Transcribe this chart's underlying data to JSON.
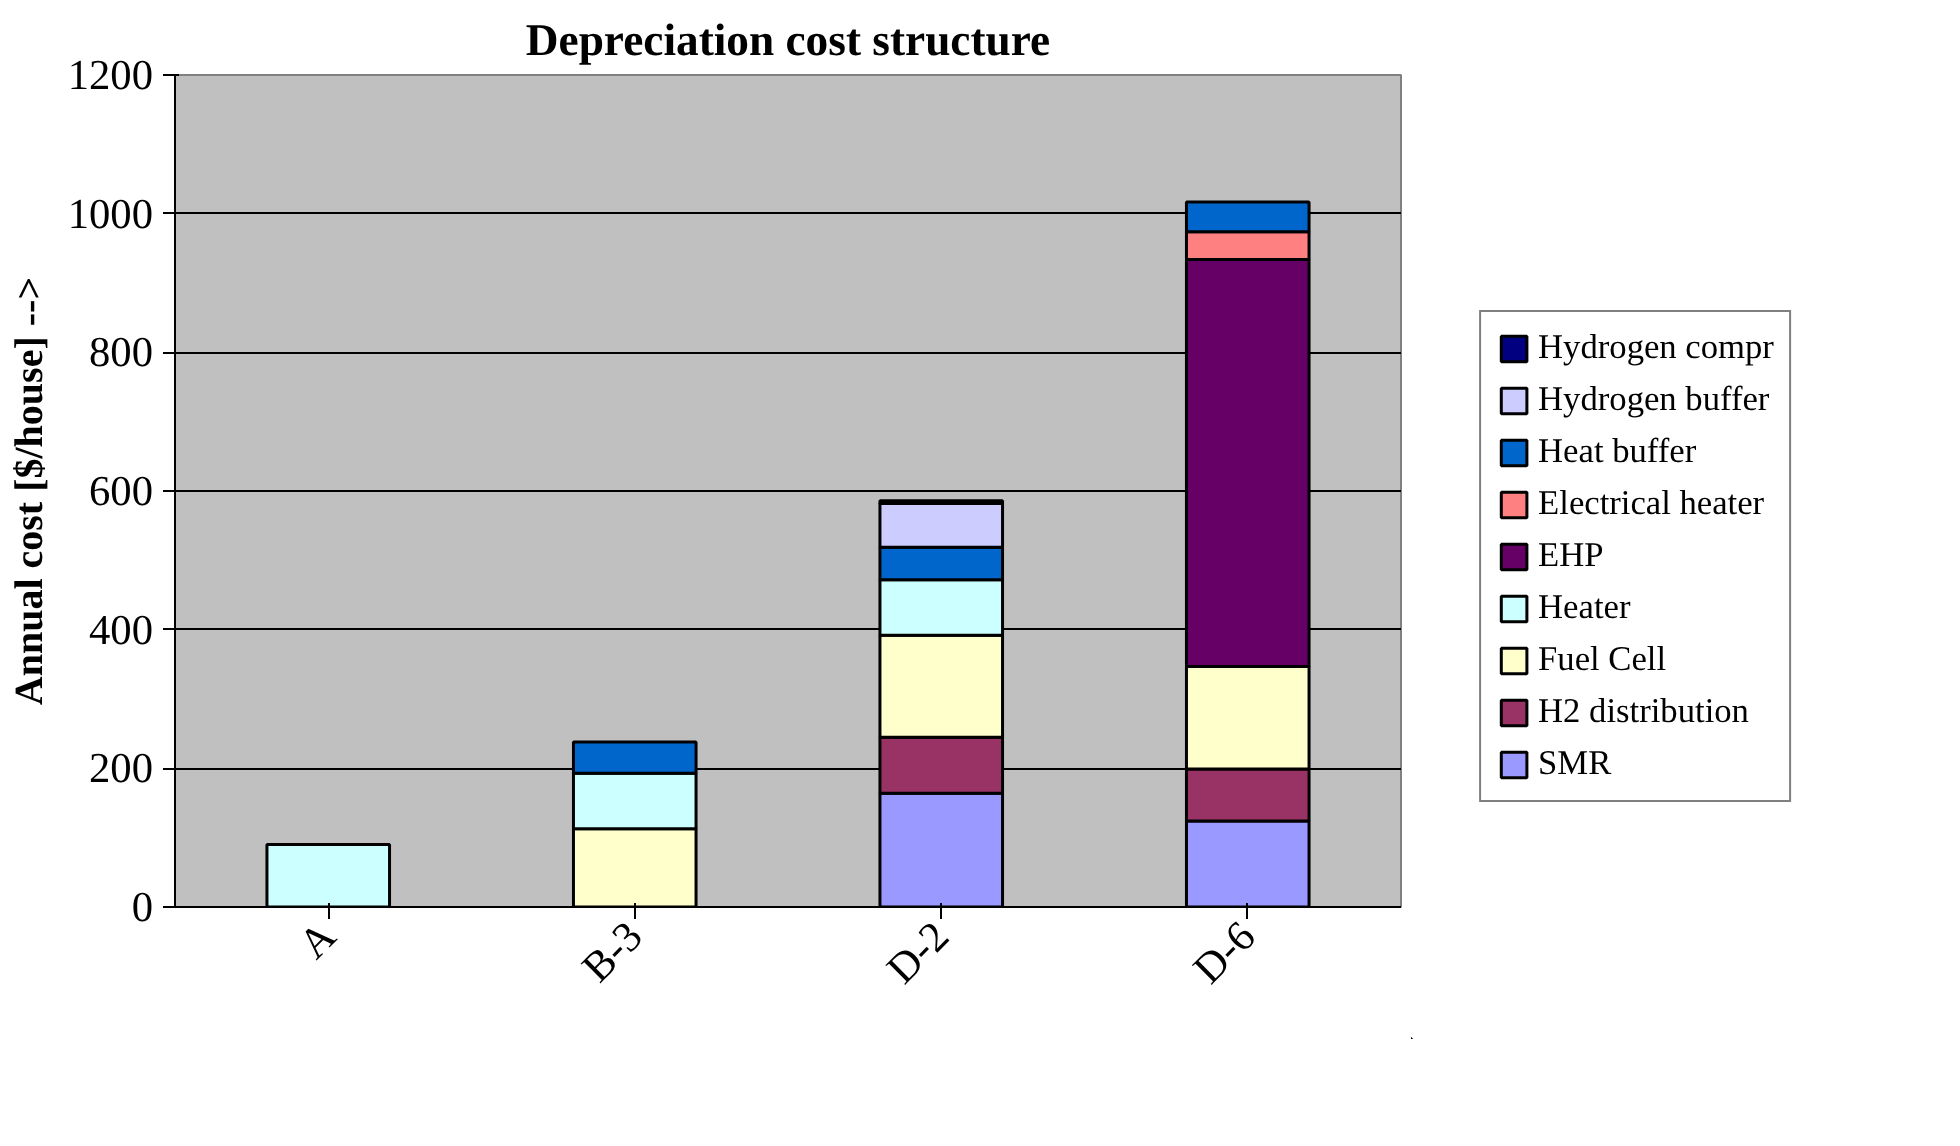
{
  "chart_data": {
    "type": "bar",
    "stacked": true,
    "title": "Depreciation cost structure",
    "ylabel": "Annual cost [$/house] -->",
    "categories": [
      "A",
      "B-3",
      "D-2",
      "D-6"
    ],
    "series": [
      {
        "name": "SMR",
        "color": "#9999ff",
        "values": [
          null,
          null,
          164,
          124
        ]
      },
      {
        "name": "H2 distribution",
        "color": "#993366",
        "values": [
          null,
          null,
          81,
          75
        ]
      },
      {
        "name": "Fuel Cell",
        "color": "#ffffcc",
        "values": [
          null,
          113,
          147,
          148
        ]
      },
      {
        "name": "Heater",
        "color": "#ccffff",
        "values": [
          90,
          80,
          80,
          null
        ]
      },
      {
        "name": "EHP",
        "color": "#660066",
        "values": [
          null,
          null,
          null,
          587
        ]
      },
      {
        "name": "Electrical heater",
        "color": "#ff8080",
        "values": [
          null,
          null,
          null,
          40
        ]
      },
      {
        "name": "Heat buffer",
        "color": "#0066cc",
        "values": [
          null,
          45,
          47,
          43
        ]
      },
      {
        "name": "Hydrogen buffer",
        "color": "#ccccff",
        "values": [
          null,
          null,
          63,
          null
        ]
      },
      {
        "name": "Hydrogen compr",
        "color": "#000080",
        "values": [
          null,
          null,
          4,
          null
        ]
      }
    ],
    "ylim": [
      0,
      1200
    ],
    "yticks": [
      0,
      200,
      400,
      600,
      800,
      1000,
      1200
    ],
    "grid": "y",
    "legend": "right"
  }
}
